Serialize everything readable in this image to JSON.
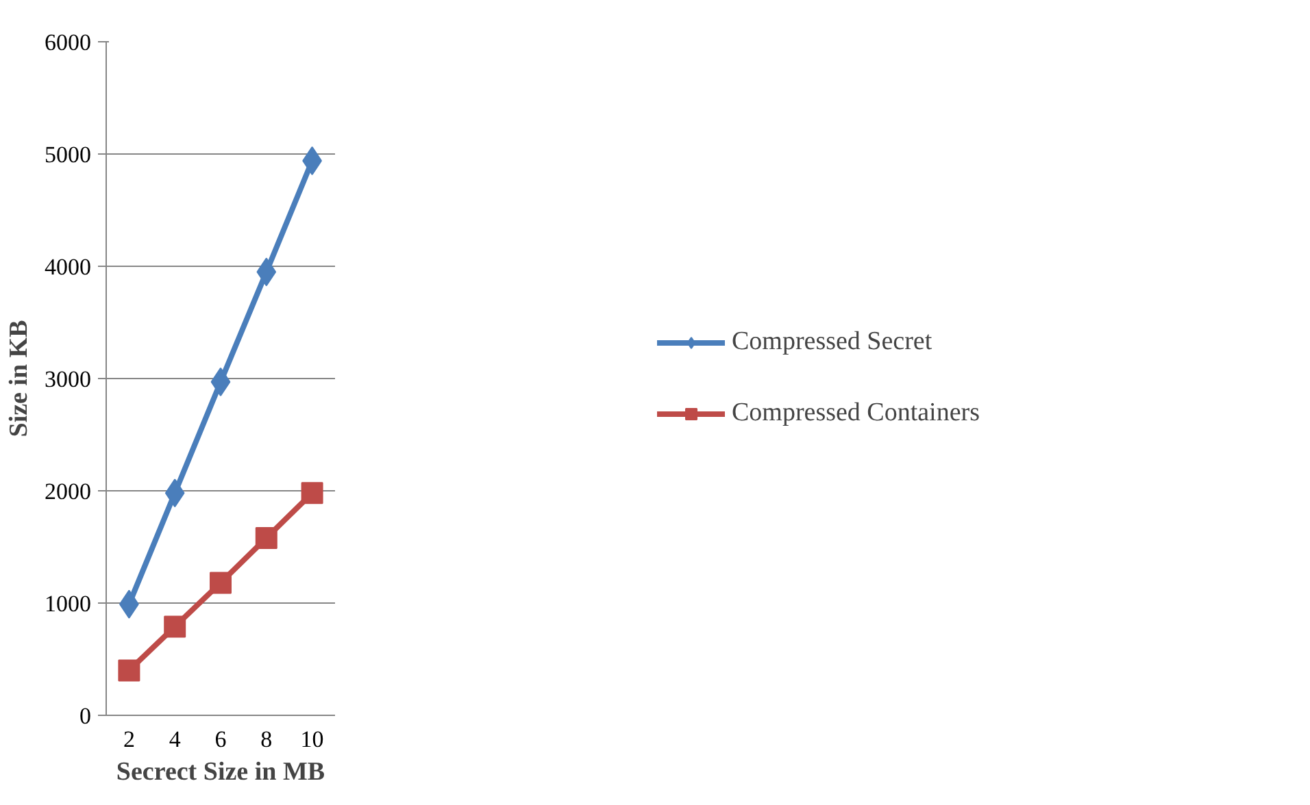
{
  "chart_data": {
    "type": "line",
    "xlabel": "Secrect Size in MB",
    "ylabel": "Size in KB",
    "categories": [
      "2",
      "4",
      "6",
      "8",
      "10"
    ],
    "series": [
      {
        "name": "Compressed Secret",
        "color": "#4a7ebb",
        "values": [
          990,
          1980,
          2970,
          3950,
          4940
        ]
      },
      {
        "name": "Compressed Containers",
        "color": "#be4b48",
        "values": [
          400,
          790,
          1180,
          1580,
          1980
        ],
        "marker": "square"
      }
    ],
    "ylim": [
      0,
      6000
    ],
    "yticks": [
      0,
      1000,
      2000,
      3000,
      4000,
      5000,
      6000
    ],
    "grid": "y",
    "legend": "right",
    "marker": "diamond",
    "line_style": "solid"
  }
}
